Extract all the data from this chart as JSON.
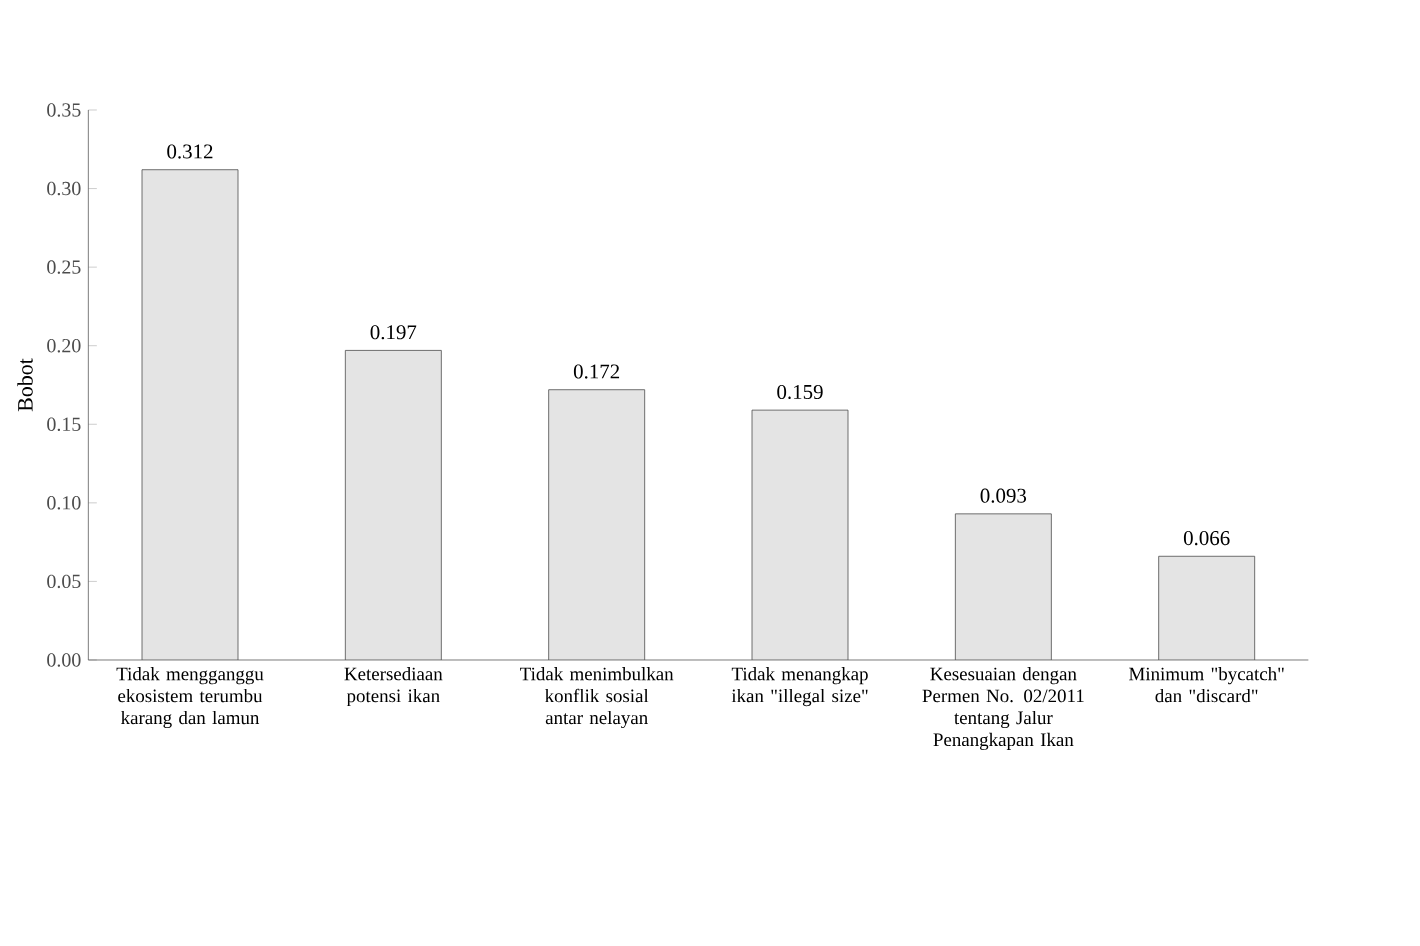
{
  "chart_data": {
    "type": "bar",
    "ylabel": "Bobot",
    "categories": [
      "Tidak mengganggu ekosistem terumbu karang dan lamun",
      "Ketersediaan potensi ikan",
      "Tidak menimbulkan konflik sosial antar nelayan",
      "Tidak menangkap ikan \"illegal size\"",
      "Kesesuaian dengan Permen No. 02/2011 tentang Jalur Penangkapan Ikan",
      "Minimum \"bycatch\" dan \"discard\""
    ],
    "values": [
      0.312,
      0.197,
      0.172,
      0.159,
      0.093,
      0.066
    ],
    "color": "#e4e4e4",
    "data_labels": true,
    "ylim": [
      0,
      0.35
    ],
    "yticks": [
      {
        "value": 0,
        "label": "0.00"
      },
      {
        "value": 0.05,
        "label": "0.05"
      },
      {
        "value": 0.1,
        "label": "0.10"
      },
      {
        "value": 0.15,
        "label": "0.15"
      },
      {
        "value": 0.2,
        "label": "0.20"
      },
      {
        "value": 0.25,
        "label": "0.25"
      },
      {
        "value": 0.3,
        "label": "0.30"
      },
      {
        "value": 0.35,
        "label": "0.35"
      }
    ]
  }
}
